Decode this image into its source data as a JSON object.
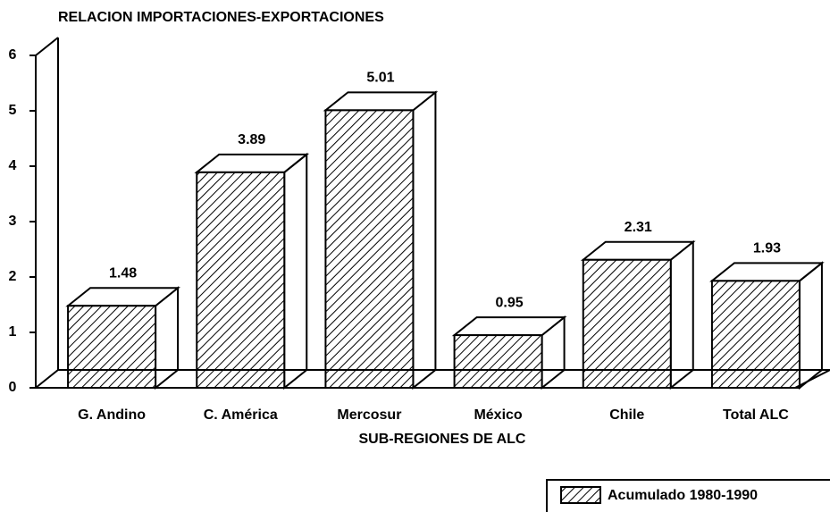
{
  "chart_data": {
    "type": "bar3d",
    "title": "RELACION IMPORTACIONES-EXPORTACIONES",
    "x_label": "SUB-REGIONES DE ALC",
    "categories": [
      "G. Andino",
      "C. América",
      "Mercosur",
      "México",
      "Chile",
      "Total ALC"
    ],
    "series": [
      {
        "name": "Acumulado 1980-1990",
        "color": "#000000",
        "values": [
          1.48,
          3.89,
          5.01,
          0.95,
          2.31,
          1.93
        ]
      }
    ],
    "ylim": [
      0,
      6
    ],
    "yticks": [
      0,
      1,
      2,
      3,
      4,
      5,
      6
    ],
    "legend": "bottom-right"
  }
}
